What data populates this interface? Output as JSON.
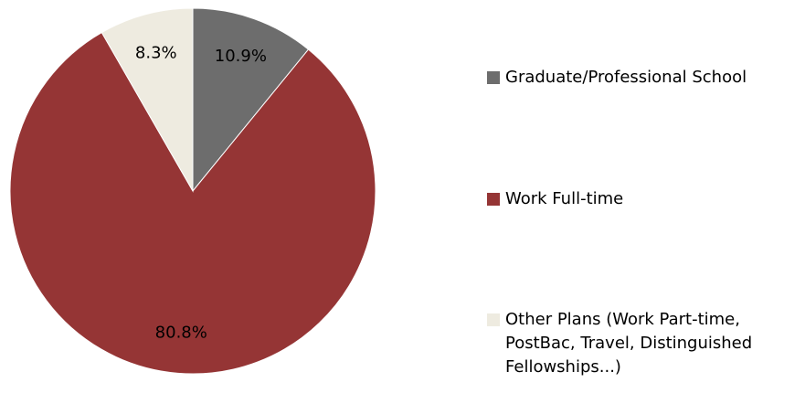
{
  "chart_data": {
    "type": "pie",
    "categories": [
      "Graduate/Professional School",
      "Work Full-time",
      "Other Plans (Work Part-time, PostBac, Travel, Distinguished Fellowships...)"
    ],
    "values": [
      10.9,
      80.8,
      8.3
    ],
    "value_labels": [
      "10.9%",
      "80.8%",
      "8.3%"
    ],
    "colors": [
      "#6d6d6d",
      "#953535",
      "#eeebe0"
    ]
  }
}
